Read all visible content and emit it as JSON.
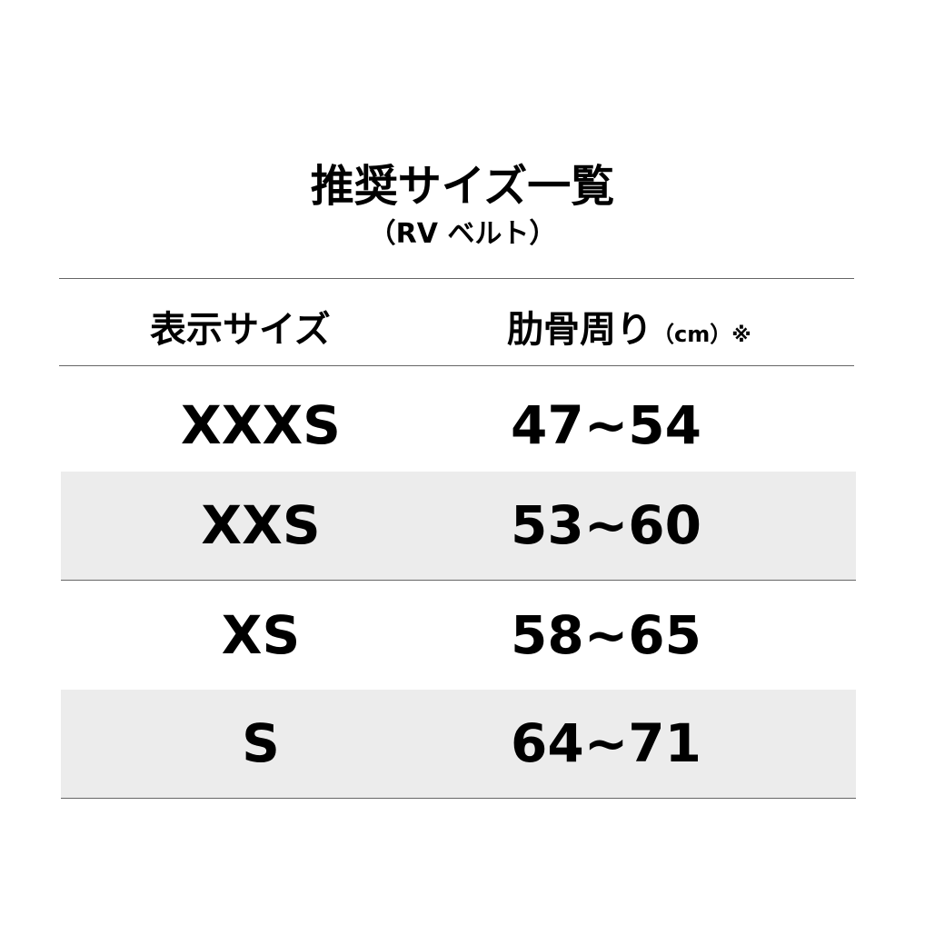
{
  "title": "推奨サイズ一覧",
  "subtitle": "（RV ベルト）",
  "headers": {
    "size": "表示サイズ",
    "rib": "肋骨周り",
    "unit": "（cm）",
    "note": "※"
  },
  "rows": [
    {
      "size": "XXXS",
      "range": "47~54"
    },
    {
      "size": "XXS",
      "range": "53~60"
    },
    {
      "size": "XS",
      "range": "58~65"
    },
    {
      "size": "S",
      "range": "64~71"
    }
  ]
}
